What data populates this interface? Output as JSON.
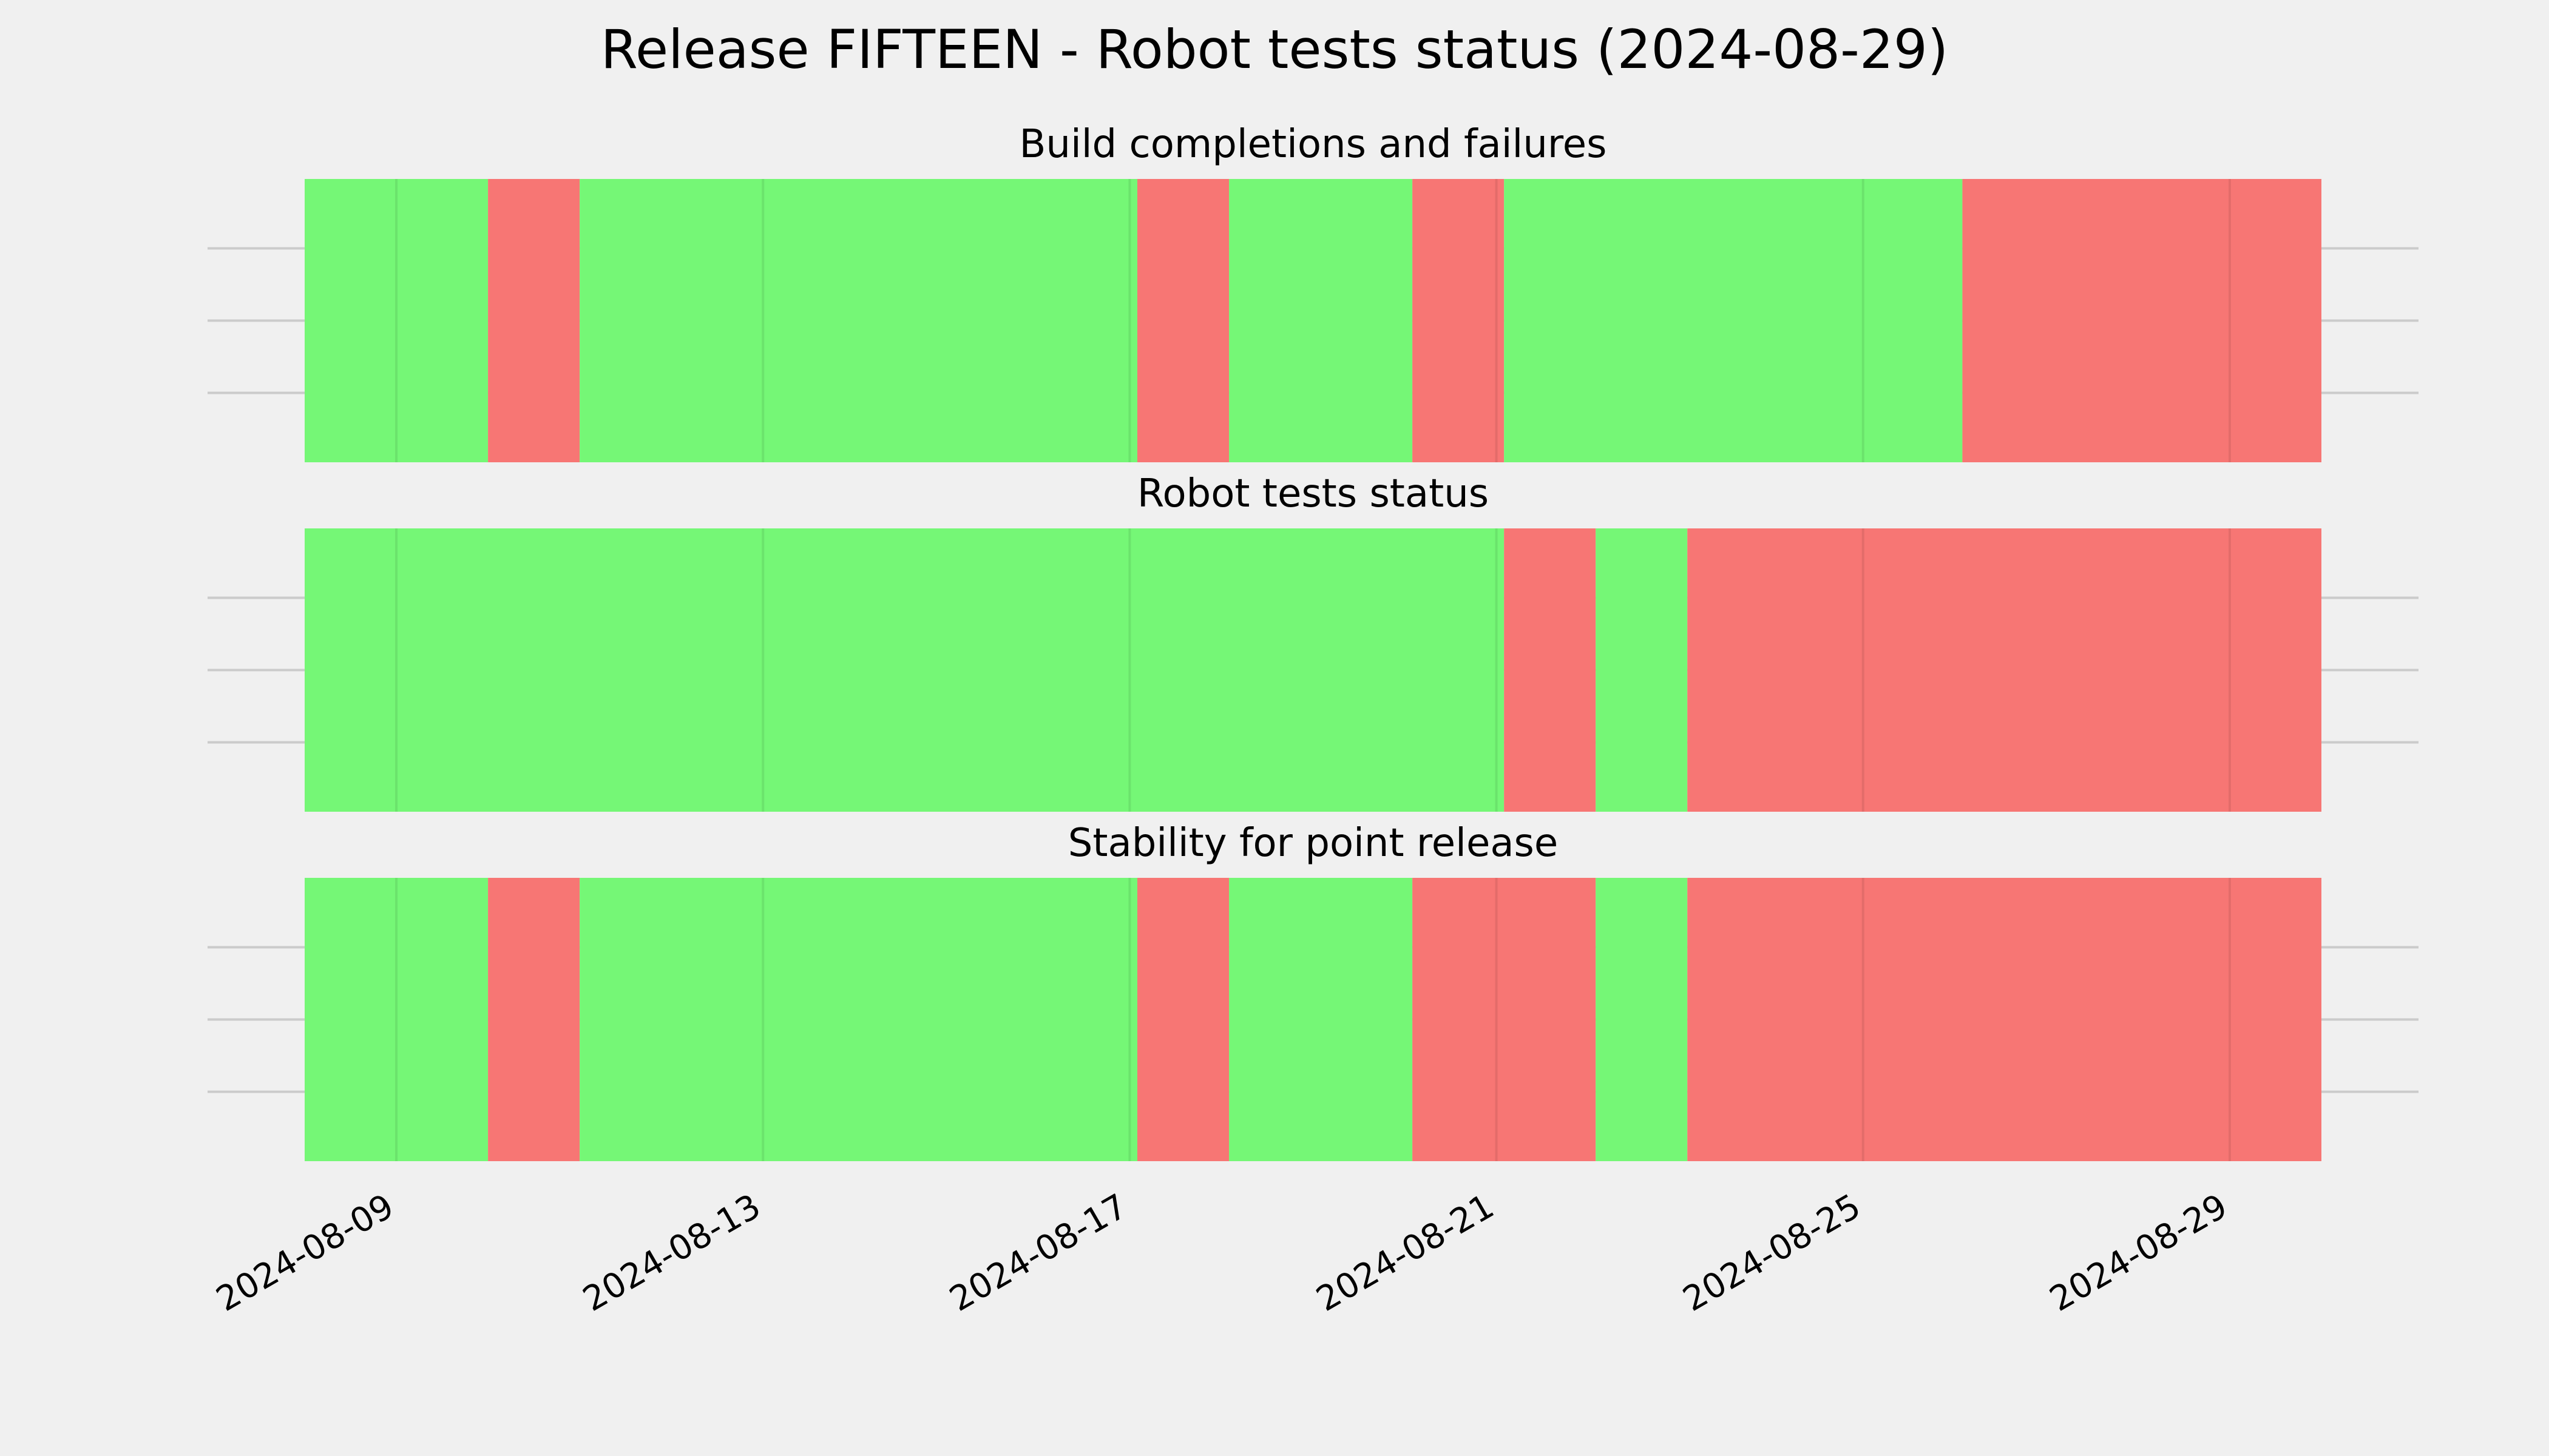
{
  "chart_data": {
    "type": "timeline",
    "title": "Release FIFTEEN - Robot tests status (2024-08-29)",
    "x_range": [
      "2024-08-08T00:00",
      "2024-08-30T00:00"
    ],
    "x_ticks": [
      "2024-08-09",
      "2024-08-13",
      "2024-08-17",
      "2024-08-21",
      "2024-08-25",
      "2024-08-29"
    ],
    "grid": true,
    "colors": {
      "success": "#75f776",
      "failure": "#f77674"
    },
    "panels": [
      {
        "title": "Build completions and failures",
        "segments": [
          {
            "start": "2024-08-08T00:00",
            "end": "2024-08-10T00:00",
            "status": "success"
          },
          {
            "start": "2024-08-10T00:00",
            "end": "2024-08-11T00:00",
            "status": "failure"
          },
          {
            "start": "2024-08-11T00:00",
            "end": "2024-08-17T02:00",
            "status": "success"
          },
          {
            "start": "2024-08-17T02:00",
            "end": "2024-08-18T02:00",
            "status": "failure"
          },
          {
            "start": "2024-08-18T02:00",
            "end": "2024-08-20T02:00",
            "status": "success"
          },
          {
            "start": "2024-08-20T02:00",
            "end": "2024-08-21T02:00",
            "status": "failure"
          },
          {
            "start": "2024-08-21T02:00",
            "end": "2024-08-26T02:00",
            "status": "success"
          },
          {
            "start": "2024-08-26T02:00",
            "end": "2024-08-30T00:00",
            "status": "failure"
          }
        ]
      },
      {
        "title": "Robot tests status",
        "segments": [
          {
            "start": "2024-08-08T00:00",
            "end": "2024-08-21T02:00",
            "status": "success"
          },
          {
            "start": "2024-08-21T02:00",
            "end": "2024-08-22T02:00",
            "status": "failure"
          },
          {
            "start": "2024-08-22T02:00",
            "end": "2024-08-23T02:00",
            "status": "success"
          },
          {
            "start": "2024-08-23T02:00",
            "end": "2024-08-30T00:00",
            "status": "failure"
          }
        ]
      },
      {
        "title": "Stability for point release",
        "segments": [
          {
            "start": "2024-08-08T00:00",
            "end": "2024-08-10T00:00",
            "status": "success"
          },
          {
            "start": "2024-08-10T00:00",
            "end": "2024-08-11T00:00",
            "status": "failure"
          },
          {
            "start": "2024-08-11T00:00",
            "end": "2024-08-17T02:00",
            "status": "success"
          },
          {
            "start": "2024-08-17T02:00",
            "end": "2024-08-18T02:00",
            "status": "failure"
          },
          {
            "start": "2024-08-18T02:00",
            "end": "2024-08-20T02:00",
            "status": "success"
          },
          {
            "start": "2024-08-20T02:00",
            "end": "2024-08-22T02:00",
            "status": "failure"
          },
          {
            "start": "2024-08-22T02:00",
            "end": "2024-08-23T02:00",
            "status": "success"
          },
          {
            "start": "2024-08-23T02:00",
            "end": "2024-08-30T00:00",
            "status": "failure"
          }
        ]
      }
    ]
  }
}
